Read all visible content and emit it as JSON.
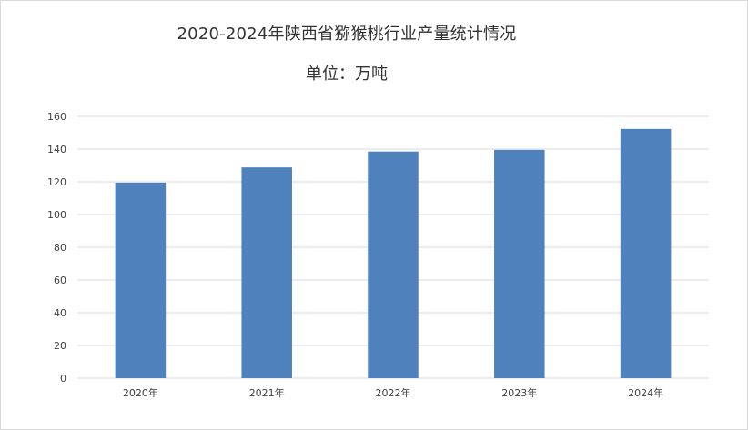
{
  "chart_data": {
    "type": "bar",
    "title": "2020-2024年陕西省猕猴桃行业产量统计情况",
    "subtitle": "单位：万吨",
    "categories": [
      "2020年",
      "2021年",
      "2022年",
      "2023年",
      "2024年"
    ],
    "values": [
      119.5,
      128.8,
      138.5,
      139.5,
      152.3
    ],
    "ylim": [
      0,
      160
    ],
    "yticks": [
      0,
      20,
      40,
      60,
      80,
      100,
      120,
      140,
      160
    ],
    "grid": true,
    "legend": "none",
    "bar_color": "#4f81bd",
    "grid_color": "#d9d9d9"
  }
}
